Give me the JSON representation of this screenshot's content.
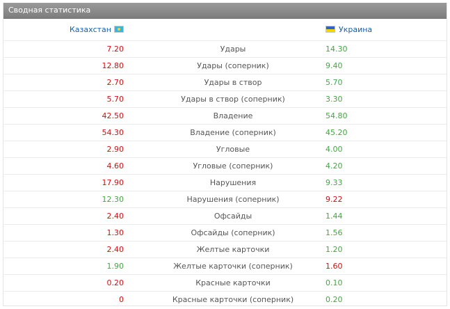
{
  "header": {
    "title": "Сводная статистика"
  },
  "teams": {
    "home": {
      "name": "Казахстан",
      "flag": "kazakhstan-flag-icon"
    },
    "away": {
      "name": "Украина",
      "flag": "ukraine-flag-icon"
    }
  },
  "colors": {
    "better": "#44a544",
    "worse": "#cc1111"
  },
  "stats": [
    {
      "label": "Удары",
      "home": "7.20",
      "away": "14.30",
      "home_color": "#cc1111",
      "away_color": "#44a544"
    },
    {
      "label": "Удары (соперник)",
      "home": "12.80",
      "away": "9.40",
      "home_color": "#cc1111",
      "away_color": "#44a544"
    },
    {
      "label": "Удары в створ",
      "home": "2.70",
      "away": "5.70",
      "home_color": "#cc1111",
      "away_color": "#44a544"
    },
    {
      "label": "Удары в створ (соперник)",
      "home": "5.70",
      "away": "3.30",
      "home_color": "#cc1111",
      "away_color": "#44a544"
    },
    {
      "label": "Владение",
      "home": "42.50",
      "away": "54.80",
      "home_color": "#cc1111",
      "away_color": "#44a544"
    },
    {
      "label": "Владение (соперник)",
      "home": "54.30",
      "away": "45.20",
      "home_color": "#cc1111",
      "away_color": "#44a544"
    },
    {
      "label": "Угловые",
      "home": "2.90",
      "away": "4.00",
      "home_color": "#cc1111",
      "away_color": "#44a544"
    },
    {
      "label": "Угловые (соперник)",
      "home": "4.60",
      "away": "4.20",
      "home_color": "#cc1111",
      "away_color": "#44a544"
    },
    {
      "label": "Нарушения",
      "home": "17.90",
      "away": "9.33",
      "home_color": "#cc1111",
      "away_color": "#44a544"
    },
    {
      "label": "Нарушения (соперник)",
      "home": "12.30",
      "away": "9.22",
      "home_color": "#44a544",
      "away_color": "#cc1111"
    },
    {
      "label": "Офсайды",
      "home": "2.40",
      "away": "1.44",
      "home_color": "#cc1111",
      "away_color": "#44a544"
    },
    {
      "label": "Офсайды (соперник)",
      "home": "1.30",
      "away": "1.56",
      "home_color": "#cc1111",
      "away_color": "#44a544"
    },
    {
      "label": "Желтые карточки",
      "home": "2.40",
      "away": "1.20",
      "home_color": "#cc1111",
      "away_color": "#44a544"
    },
    {
      "label": "Желтые карточки (соперник)",
      "home": "1.90",
      "away": "1.60",
      "home_color": "#44a544",
      "away_color": "#cc1111"
    },
    {
      "label": "Красные карточки",
      "home": "0.20",
      "away": "0.10",
      "home_color": "#cc1111",
      "away_color": "#44a544"
    },
    {
      "label": "Красные карточки (соперник)",
      "home": "0",
      "away": "0.20",
      "home_color": "#cc1111",
      "away_color": "#44a544"
    }
  ]
}
